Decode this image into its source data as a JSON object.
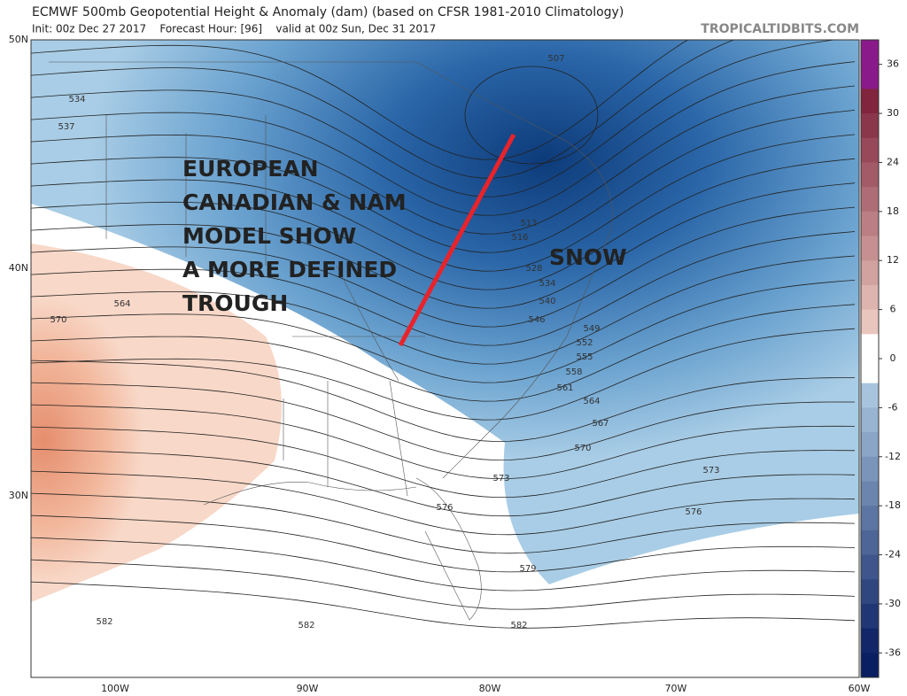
{
  "header": {
    "title": "ECMWF 500mb Geopotential Height & Anomaly (dam) (based on CFSR 1981-2010 Climatology)",
    "subtitle": "Init: 00z Dec 27 2017    Forecast Hour: [96]    valid at 00z Sun, Dec 31 2017",
    "site": "TROPICALTIDBITS.COM"
  },
  "latitude_labels": [
    "50N",
    "40N",
    "30N"
  ],
  "longitude_labels": [
    "100W",
    "90W",
    "80W",
    "70W",
    "60W"
  ],
  "colorbar": {
    "ticks": [
      36,
      30,
      24,
      18,
      12,
      6,
      0,
      -6,
      -12,
      -18,
      -24,
      -30,
      -36
    ]
  },
  "contour_labels": [
    "507",
    "534",
    "537",
    "513",
    "516",
    "528",
    "534",
    "540",
    "546",
    "549",
    "552",
    "555",
    "558",
    "561",
    "564",
    "567",
    "570",
    "573",
    "573",
    "576",
    "576",
    "579",
    "582",
    "582",
    "582",
    "570",
    "564"
  ],
  "annotation": {
    "lines": [
      "EUROPEAN",
      "CANADIAN & NAM",
      "MODEL SHOW",
      "A MORE DEFINED",
      "TROUGH"
    ],
    "snow": "SNOW"
  }
}
